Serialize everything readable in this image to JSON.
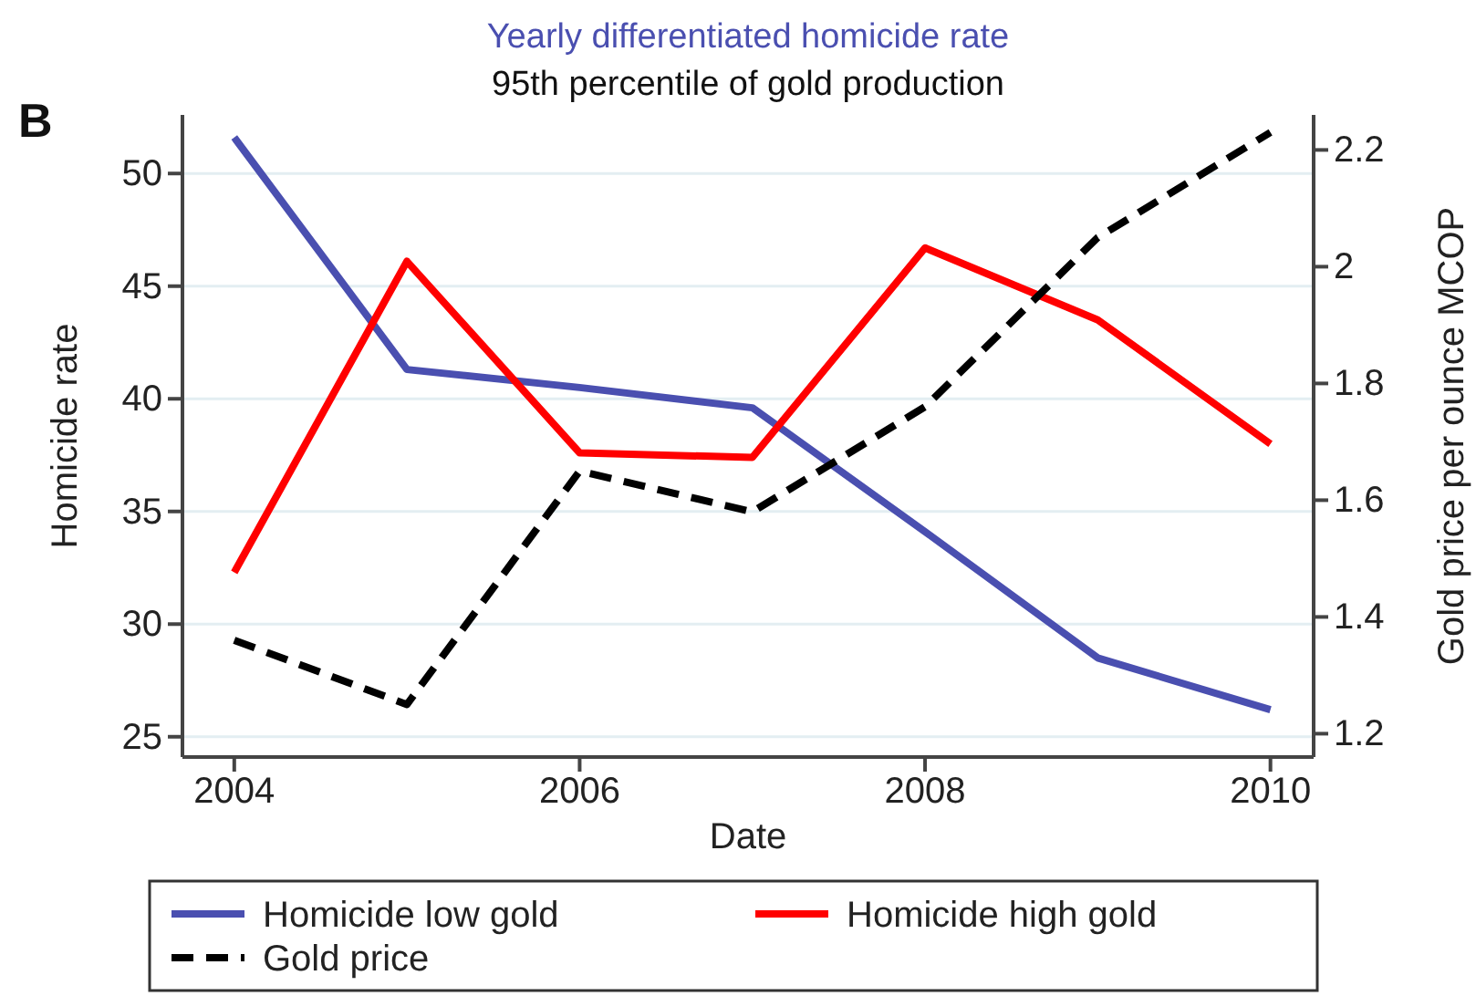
{
  "chart_data": {
    "type": "line",
    "title": "Yearly differentiated homicide rate",
    "subtitle": "95th percentile of gold production",
    "xlabel": "Date",
    "ylabel": "Homicide rate",
    "y2label": "Gold price per ounce MCOP",
    "annotations": [
      "B"
    ],
    "x": [
      2004,
      2005,
      2006,
      2007,
      2008,
      2009,
      2010
    ],
    "xlim": [
      2003.7,
      2010.25
    ],
    "xticks": [
      2004,
      2006,
      2008,
      2010
    ],
    "ylim": [
      24.1,
      52.6
    ],
    "yticks": [
      25,
      30,
      35,
      40,
      45,
      50
    ],
    "y2lim": [
      1.16,
      2.26
    ],
    "y2ticks": [
      1.2,
      1.4,
      1.6,
      1.8,
      2,
      2.2
    ],
    "series": [
      {
        "name": "Homicide low gold",
        "color": "#4a4fb0",
        "values": [
          51.6,
          41.3,
          40.5,
          39.6,
          34.1,
          28.5,
          26.2
        ]
      },
      {
        "name": "Homicide high gold",
        "color": "#ff0000",
        "values": [
          32.3,
          46.1,
          37.6,
          37.4,
          46.7,
          43.5,
          38
        ]
      },
      {
        "name": "Gold price",
        "color": "#000000",
        "axis": "y2",
        "line_style": "dashed",
        "values": [
          1.36,
          1.25,
          1.65,
          1.58,
          1.76,
          2.05,
          2.23
        ]
      }
    ],
    "grid": "y",
    "legend": "bottom",
    "marker": "none"
  }
}
